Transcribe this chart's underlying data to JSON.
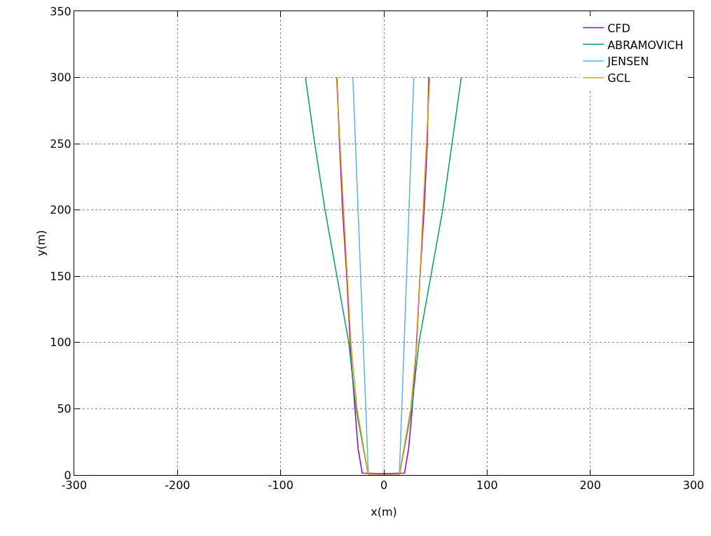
{
  "chart_data": {
    "type": "line",
    "xlabel": "x(m)",
    "ylabel": "y(m)",
    "xlim": [
      -300,
      300
    ],
    "xticks": [
      -300,
      -200,
      -100,
      0,
      100,
      200,
      300
    ],
    "ylim": [
      0,
      350
    ],
    "yticks": [
      0,
      50,
      100,
      150,
      200,
      250,
      300,
      350
    ],
    "grid": true,
    "legend": "top right",
    "marker": "none",
    "line_style": "solid",
    "series": [
      {
        "name": "CFD",
        "color": "#9400d3",
        "x": [
          -45.5,
          -43,
          -40,
          -36,
          -32,
          -28,
          -25,
          -21,
          0,
          20,
          24,
          27.5,
          31,
          35,
          39,
          42,
          43.5
        ],
        "values": [
          300,
          250,
          200,
          150,
          90,
          50,
          20,
          1.5,
          1,
          1.5,
          20,
          50,
          90,
          150,
          200,
          250,
          300
        ]
      },
      {
        "name": "ABRAMOVICH",
        "color": "#009e73",
        "x": [
          -76,
          -67,
          -57,
          -34,
          -27,
          -15,
          15,
          27,
          34,
          57,
          66,
          75
        ],
        "values": [
          300,
          250,
          200,
          100,
          50,
          0,
          0,
          50,
          100,
          200,
          250,
          300
        ]
      },
      {
        "name": "JENSEN",
        "color": "#56b4e9",
        "x": [
          -30,
          -15,
          15,
          29
        ],
        "values": [
          300,
          0,
          0,
          300
        ]
      },
      {
        "name": "GCL",
        "color": "#e69f00",
        "x": [
          -46,
          -39,
          -32,
          -26,
          -15,
          15,
          26,
          32,
          38,
          44.5
        ],
        "values": [
          300,
          200,
          100,
          50,
          0,
          0,
          50,
          100,
          200,
          300
        ]
      }
    ]
  }
}
